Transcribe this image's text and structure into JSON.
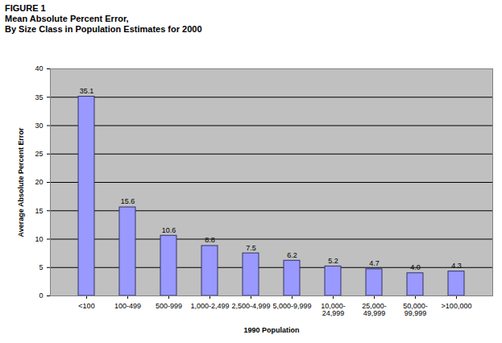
{
  "chart_data": {
    "type": "bar",
    "title": "FIGURE 1",
    "subtitle": "Mean Absolute Percent Error,\nBy Size Class in Population Estimates for 2000",
    "x_label": "1990 Population",
    "y_label": "Average Absolute Percent Error",
    "categories": [
      "<100",
      "100-499",
      "500-999",
      "1,000-2,499",
      "2,500-4,999",
      "5,000-9,999",
      "10,000-24,999",
      "25,000-49,999",
      "50,000-99,999",
      ">100,000"
    ],
    "values": [
      35.1,
      15.6,
      10.6,
      8.8,
      7.5,
      6.2,
      5.2,
      4.7,
      4.0,
      4.3
    ],
    "value_labels": [
      "35.1",
      "15.6",
      "10.6",
      "8.8",
      "7.5",
      "6.2",
      "5.2",
      "4.7",
      "4.0",
      "4.3"
    ],
    "color": "#9999ff",
    "ylim": [
      0,
      40
    ],
    "yticks": [
      0,
      5,
      10,
      15,
      20,
      25,
      30,
      35,
      40
    ],
    "grid": true,
    "data_labels": true
  }
}
